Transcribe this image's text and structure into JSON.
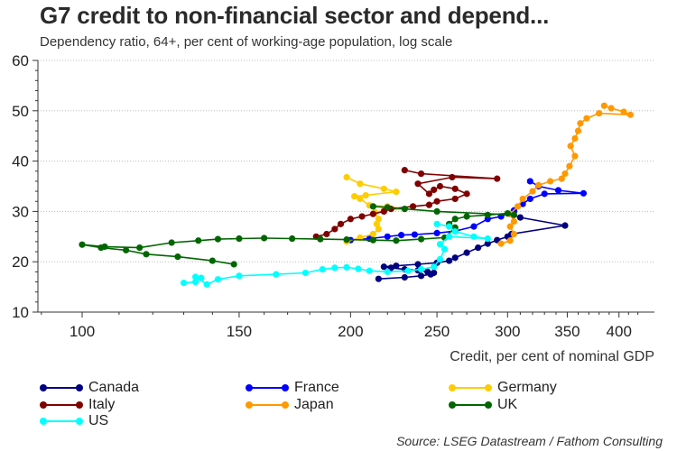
{
  "header": {
    "title": "G7 credit to non-financial sector and depend...",
    "subtitle": "Dependency ratio, 64+, per cent of working-age population, log scale"
  },
  "source": "Source: LSEG Datastream / Fathom Consulting",
  "chart_data": {
    "type": "scatter",
    "mode": "connected-scatter",
    "title": "G7 credit to non-financial sector and depend...",
    "subtitle": "Dependency ratio, 64+, per cent of working-age population, log scale",
    "xlabel": "Credit, per cent of nominal GDP",
    "ylabel": "Dependency ratio, 64+",
    "x_scale": "log",
    "y_scale": "linear",
    "xlim": [
      90,
      420
    ],
    "ylim": [
      10,
      60
    ],
    "x_ticks": [
      100,
      150,
      200,
      250,
      300,
      350,
      400
    ],
    "y_ticks": [
      10,
      20,
      30,
      40,
      50,
      60
    ],
    "grid": "horizontal-dotted",
    "legend_position": "bottom",
    "series": [
      {
        "name": "Canada",
        "color": "#000080",
        "points": [
          [
            215,
            16.6
          ],
          [
            230,
            16.9
          ],
          [
            240,
            17.2
          ],
          [
            246,
            17.5
          ],
          [
            248,
            17.8
          ],
          [
            244,
            18.0
          ],
          [
            238,
            18.3
          ],
          [
            230,
            18.5
          ],
          [
            222,
            18.8
          ],
          [
            218,
            19.0
          ],
          [
            225,
            19.2
          ],
          [
            238,
            19.5
          ],
          [
            250,
            19.8
          ],
          [
            258,
            20.2
          ],
          [
            262,
            20.8
          ],
          [
            270,
            21.8
          ],
          [
            278,
            22.8
          ],
          [
            285,
            23.6
          ],
          [
            292,
            24.3
          ],
          [
            300,
            25.0
          ],
          [
            303,
            25.5
          ],
          [
            348,
            27.2
          ],
          [
            310,
            28.8
          ],
          [
            302,
            29.5
          ],
          [
            305,
            30.0
          ]
        ]
      },
      {
        "name": "France",
        "color": "#0000FF",
        "points": [
          [
            200,
            24.3
          ],
          [
            210,
            24.6
          ],
          [
            220,
            25.0
          ],
          [
            228,
            25.3
          ],
          [
            236,
            25.4
          ],
          [
            250,
            25.7
          ],
          [
            262,
            26.1
          ],
          [
            275,
            27.0
          ],
          [
            285,
            28.5
          ],
          [
            295,
            29.0
          ],
          [
            305,
            30.2
          ],
          [
            312,
            31.5
          ],
          [
            318,
            32.5
          ],
          [
            330,
            33.5
          ],
          [
            365,
            33.6
          ],
          [
            342,
            34.2
          ],
          [
            325,
            35.0
          ],
          [
            318,
            36.0
          ]
        ]
      },
      {
        "name": "Germany",
        "color": "#FFCC00",
        "points": [
          [
            198,
            24.0
          ],
          [
            205,
            24.8
          ],
          [
            212,
            25.5
          ],
          [
            215,
            26.5
          ],
          [
            214,
            27.5
          ],
          [
            215,
            28.5
          ],
          [
            213,
            29.8
          ],
          [
            218,
            30.2
          ],
          [
            230,
            30.5
          ],
          [
            220,
            31.0
          ],
          [
            210,
            31.2
          ],
          [
            205,
            32.5
          ],
          [
            202,
            33.0
          ],
          [
            208,
            33.2
          ],
          [
            225,
            33.9
          ],
          [
            218,
            34.5
          ],
          [
            205,
            35.5
          ],
          [
            198,
            36.8
          ]
        ]
      },
      {
        "name": "Italy",
        "color": "#800000",
        "points": [
          [
            183,
            25.0
          ],
          [
            188,
            25.5
          ],
          [
            192,
            26.5
          ],
          [
            195,
            27.5
          ],
          [
            200,
            28.5
          ],
          [
            206,
            29.0
          ],
          [
            212,
            29.5
          ],
          [
            218,
            30.0
          ],
          [
            222,
            30.5
          ],
          [
            235,
            31.0
          ],
          [
            245,
            31.3
          ],
          [
            250,
            32.0
          ],
          [
            262,
            32.5
          ],
          [
            270,
            33.5
          ],
          [
            262,
            34.5
          ],
          [
            252,
            35.0
          ],
          [
            248,
            34.3
          ],
          [
            245,
            33.5
          ],
          [
            238,
            35.5
          ],
          [
            260,
            36.8
          ],
          [
            292,
            36.5
          ],
          [
            240,
            37.5
          ],
          [
            230,
            38.2
          ]
        ]
      },
      {
        "name": "Japan",
        "color": "#FF9900",
        "points": [
          [
            295,
            23.6
          ],
          [
            302,
            24.2
          ],
          [
            305,
            25.5
          ],
          [
            302,
            27.0
          ],
          [
            305,
            28.0
          ],
          [
            302,
            29.5
          ],
          [
            308,
            31.0
          ],
          [
            312,
            32.5
          ],
          [
            320,
            34.0
          ],
          [
            325,
            35.2
          ],
          [
            335,
            36.0
          ],
          [
            345,
            36.5
          ],
          [
            348,
            37.5
          ],
          [
            352,
            39.0
          ],
          [
            357,
            41.0
          ],
          [
            353,
            43.0
          ],
          [
            357,
            44.5
          ],
          [
            360,
            46.0
          ],
          [
            362,
            47.5
          ],
          [
            368,
            48.5
          ],
          [
            380,
            49.5
          ],
          [
            412,
            49.2
          ],
          [
            405,
            49.8
          ],
          [
            392,
            50.5
          ],
          [
            385,
            51.0
          ]
        ]
      },
      {
        "name": "UK",
        "color": "#006600",
        "points": [
          [
            148,
            19.5
          ],
          [
            140,
            20.2
          ],
          [
            128,
            21.0
          ],
          [
            118,
            21.5
          ],
          [
            112,
            22.3
          ],
          [
            105,
            22.8
          ],
          [
            100,
            23.4
          ],
          [
            106,
            23.0
          ],
          [
            116,
            22.8
          ],
          [
            126,
            23.8
          ],
          [
            135,
            24.2
          ],
          [
            142,
            24.5
          ],
          [
            150,
            24.6
          ],
          [
            160,
            24.7
          ],
          [
            172,
            24.6
          ],
          [
            185,
            24.5
          ],
          [
            198,
            24.4
          ],
          [
            212,
            24.3
          ],
          [
            225,
            24.2
          ],
          [
            240,
            24.5
          ],
          [
            255,
            24.8
          ],
          [
            262,
            26.8
          ],
          [
            258,
            27.5
          ],
          [
            262,
            28.5
          ],
          [
            270,
            29.0
          ],
          [
            285,
            29.3
          ],
          [
            300,
            29.6
          ],
          [
            305,
            29.3
          ],
          [
            250,
            30.0
          ],
          [
            230,
            30.5
          ],
          [
            220,
            30.8
          ],
          [
            212,
            31.0
          ]
        ]
      },
      {
        "name": "US",
        "color": "#00FFFF",
        "points": [
          [
            130,
            15.8
          ],
          [
            134,
            16.0
          ],
          [
            136,
            16.8
          ],
          [
            134,
            17.0
          ],
          [
            138,
            15.5
          ],
          [
            142,
            16.5
          ],
          [
            150,
            17.2
          ],
          [
            165,
            17.5
          ],
          [
            178,
            17.8
          ],
          [
            186,
            18.5
          ],
          [
            192,
            18.8
          ],
          [
            198,
            18.9
          ],
          [
            204,
            18.6
          ],
          [
            210,
            18.2
          ],
          [
            220,
            18.0
          ],
          [
            232,
            18.2
          ],
          [
            240,
            18.5
          ],
          [
            248,
            19.0
          ],
          [
            252,
            20.5
          ],
          [
            255,
            22.5
          ],
          [
            252,
            23.5
          ],
          [
            258,
            25.0
          ],
          [
            285,
            24.6
          ],
          [
            275,
            25.0
          ],
          [
            262,
            26.0
          ],
          [
            258,
            27.0
          ],
          [
            250,
            27.5
          ]
        ]
      }
    ]
  },
  "legend": [
    {
      "label": "Canada",
      "color": "#000080"
    },
    {
      "label": "France",
      "color": "#0000FF"
    },
    {
      "label": "Germany",
      "color": "#FFCC00"
    },
    {
      "label": "Italy",
      "color": "#800000"
    },
    {
      "label": "Japan",
      "color": "#FF9900"
    },
    {
      "label": "UK",
      "color": "#006600"
    },
    {
      "label": "US",
      "color": "#00FFFF"
    }
  ]
}
